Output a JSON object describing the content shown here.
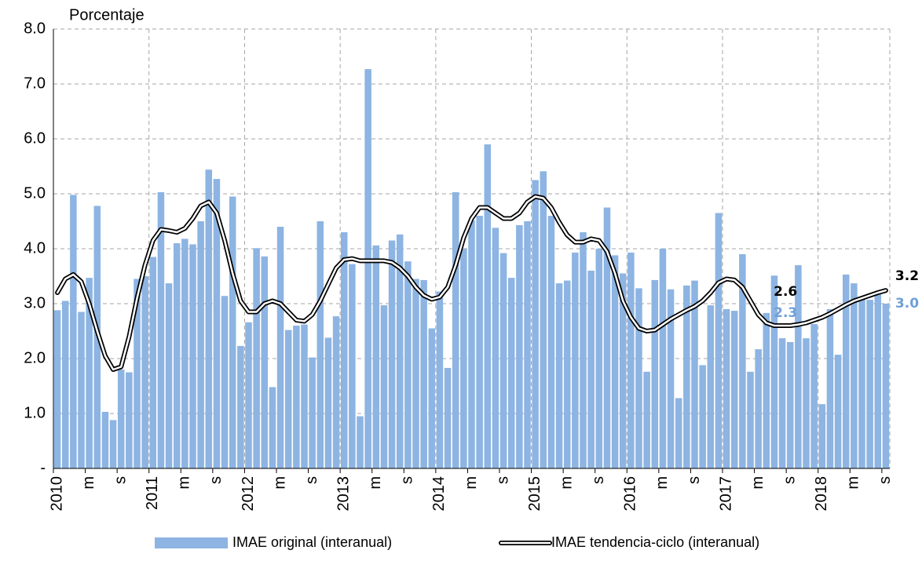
{
  "chart_data": {
    "type": "bar",
    "y_axis_label": "Porcentaje",
    "categories": [
      "2010",
      null,
      null,
      null,
      "m",
      null,
      null,
      null,
      "s",
      null,
      null,
      null,
      "2011",
      null,
      null,
      null,
      "m",
      null,
      null,
      null,
      "s",
      null,
      null,
      null,
      "2012",
      null,
      null,
      null,
      "m",
      null,
      null,
      null,
      "s",
      null,
      null,
      null,
      "2013",
      null,
      null,
      null,
      "m",
      null,
      null,
      null,
      "s",
      null,
      null,
      null,
      "2014",
      null,
      null,
      null,
      "m",
      null,
      null,
      null,
      "s",
      null,
      null,
      null,
      "2015",
      null,
      null,
      null,
      "m",
      null,
      null,
      null,
      "s",
      null,
      null,
      null,
      "2016",
      null,
      null,
      null,
      "m",
      null,
      null,
      null,
      "s",
      null,
      null,
      null,
      "2017",
      null,
      null,
      null,
      "m",
      null,
      null,
      null,
      "s",
      null,
      null,
      null,
      "2018",
      null,
      null,
      null,
      "m",
      null,
      null,
      null,
      "s"
    ],
    "ylim": [
      0,
      8
    ],
    "yticks": [
      {
        "value": 0,
        "label": "-"
      },
      {
        "value": 1,
        "label": "1.0"
      },
      {
        "value": 2,
        "label": "2.0"
      },
      {
        "value": 3,
        "label": "3.0"
      },
      {
        "value": 4,
        "label": "4.0"
      },
      {
        "value": 5,
        "label": "5.0"
      },
      {
        "value": 6,
        "label": "6.0"
      },
      {
        "value": 7,
        "label": "7.0"
      },
      {
        "value": 8,
        "label": "8.0"
      }
    ],
    "grid": true,
    "series": [
      {
        "name": "IMAE original (interanual)",
        "type": "bar",
        "color": "#8db4e2",
        "values": [
          2.88,
          3.05,
          4.98,
          2.85,
          3.47,
          4.78,
          1.03,
          0.88,
          1.8,
          1.75,
          3.45,
          3.5,
          3.85,
          5.03,
          3.37,
          4.1,
          4.18,
          4.08,
          4.5,
          5.44,
          5.27,
          3.14,
          4.95,
          2.23,
          2.66,
          4.01,
          3.86,
          1.48,
          4.4,
          2.52,
          2.6,
          2.62,
          2.02,
          4.5,
          2.38,
          2.77,
          4.3,
          3.72,
          0.95,
          7.27,
          4.06,
          2.97,
          4.15,
          4.26,
          3.77,
          3.45,
          3.43,
          2.55,
          3.22,
          1.83,
          5.03,
          4.0,
          4.52,
          4.6,
          5.9,
          4.38,
          3.92,
          3.47,
          4.43,
          4.5,
          5.25,
          5.41,
          4.6,
          3.37,
          3.42,
          3.93,
          4.3,
          3.6,
          4.0,
          4.75,
          3.88,
          3.55,
          3.93,
          3.28,
          1.76,
          3.43,
          4.0,
          3.26,
          1.28,
          3.33,
          3.42,
          1.88,
          2.97,
          4.65,
          2.9,
          2.87,
          3.9,
          1.76,
          2.17,
          2.83,
          3.51,
          2.37,
          2.3,
          3.7,
          2.37,
          2.63,
          1.17,
          2.9,
          2.07,
          3.53,
          3.37,
          3.1,
          3.07,
          3.17,
          3.0
        ],
        "value_labels": [
          null,
          null,
          null,
          null,
          null,
          null,
          null,
          null,
          null,
          null,
          null,
          null,
          null,
          null,
          null,
          null,
          null,
          null,
          null,
          null,
          null,
          null,
          null,
          null,
          null,
          null,
          null,
          null,
          null,
          null,
          null,
          null,
          null,
          null,
          null,
          null,
          null,
          null,
          null,
          null,
          null,
          null,
          null,
          null,
          null,
          null,
          null,
          null,
          null,
          null,
          null,
          null,
          null,
          null,
          null,
          null,
          null,
          null,
          null,
          null,
          null,
          null,
          null,
          null,
          null,
          null,
          null,
          null,
          null,
          null,
          null,
          null,
          null,
          null,
          null,
          null,
          null,
          null,
          null,
          null,
          null,
          null,
          null,
          null,
          null,
          null,
          null,
          null,
          null,
          null,
          null,
          null,
          "2.3",
          null,
          null,
          null,
          null,
          null,
          null,
          null,
          null,
          null,
          null,
          null,
          "3.0"
        ]
      },
      {
        "name": "IMAE tendencia-ciclo (interanual)",
        "type": "line",
        "color": "#000000",
        "values": [
          3.2,
          3.45,
          3.53,
          3.4,
          3.0,
          2.5,
          2.05,
          1.8,
          1.85,
          2.4,
          3.1,
          3.7,
          4.15,
          4.35,
          4.33,
          4.3,
          4.37,
          4.55,
          4.78,
          4.85,
          4.65,
          4.15,
          3.55,
          3.05,
          2.85,
          2.85,
          3.0,
          3.05,
          3.0,
          2.85,
          2.7,
          2.68,
          2.8,
          3.05,
          3.35,
          3.65,
          3.8,
          3.82,
          3.78,
          3.78,
          3.78,
          3.78,
          3.75,
          3.65,
          3.5,
          3.3,
          3.15,
          3.08,
          3.12,
          3.3,
          3.7,
          4.2,
          4.55,
          4.75,
          4.75,
          4.65,
          4.55,
          4.55,
          4.65,
          4.85,
          4.95,
          4.92,
          4.75,
          4.48,
          4.25,
          4.12,
          4.12,
          4.18,
          4.15,
          3.95,
          3.55,
          3.05,
          2.75,
          2.55,
          2.5,
          2.52,
          2.62,
          2.72,
          2.8,
          2.88,
          2.95,
          3.05,
          3.2,
          3.38,
          3.45,
          3.43,
          3.3,
          3.05,
          2.8,
          2.65,
          2.6,
          2.6,
          2.6,
          2.62,
          2.65,
          2.7,
          2.75,
          2.82,
          2.9,
          2.98,
          3.05,
          3.1,
          3.15,
          3.2,
          3.24
        ],
        "value_labels": [
          null,
          null,
          null,
          null,
          null,
          null,
          null,
          null,
          null,
          null,
          null,
          null,
          null,
          null,
          null,
          null,
          null,
          null,
          null,
          null,
          null,
          null,
          null,
          null,
          null,
          null,
          null,
          null,
          null,
          null,
          null,
          null,
          null,
          null,
          null,
          null,
          null,
          null,
          null,
          null,
          null,
          null,
          null,
          null,
          null,
          null,
          null,
          null,
          null,
          null,
          null,
          null,
          null,
          null,
          null,
          null,
          null,
          null,
          null,
          null,
          null,
          null,
          null,
          null,
          null,
          null,
          null,
          null,
          null,
          null,
          null,
          null,
          null,
          null,
          null,
          null,
          null,
          null,
          null,
          null,
          null,
          null,
          null,
          null,
          null,
          null,
          null,
          null,
          null,
          null,
          null,
          null,
          "2.6",
          null,
          null,
          null,
          null,
          null,
          null,
          null,
          null,
          null,
          null,
          null,
          "3.2"
        ]
      }
    ]
  }
}
